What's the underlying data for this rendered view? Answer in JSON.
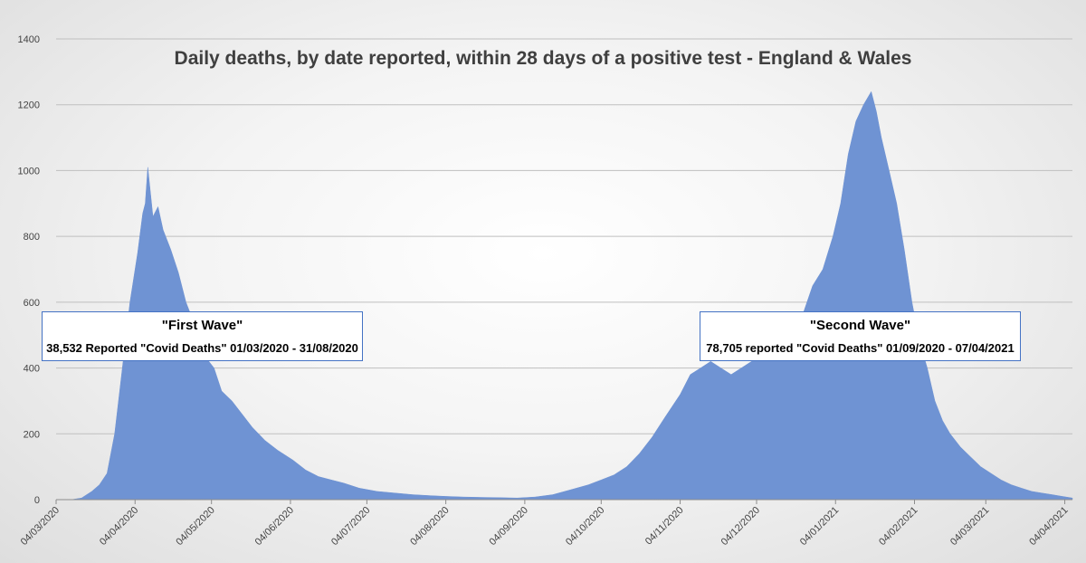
{
  "chart_data": {
    "type": "area",
    "title": "Daily deaths, by date reported, within 28 days of a positive test - England & Wales",
    "xlabel": "",
    "ylabel": "",
    "ylim": [
      0,
      1400
    ],
    "yticks": [
      0,
      200,
      400,
      600,
      800,
      1000,
      1200,
      1400
    ],
    "x_range": [
      "04/03/2020",
      "07/04/2021"
    ],
    "xtick_labels": [
      "04/03/2020",
      "04/04/2020",
      "04/05/2020",
      "04/06/2020",
      "04/07/2020",
      "04/08/2020",
      "04/09/2020",
      "04/10/2020",
      "04/11/2020",
      "04/12/2020",
      "04/01/2021",
      "04/02/2021",
      "04/03/2021",
      "04/04/2021"
    ],
    "grid": true,
    "legend": "none",
    "fill_color": "#6f93d3",
    "series": [
      {
        "x": [
          "04/03/2020",
          "10/03/2020",
          "14/03/2020",
          "18/03/2020",
          "21/03/2020",
          "24/03/2020",
          "27/03/2020",
          "30/03/2020",
          "02/04/2020",
          "05/04/2020",
          "07/04/2020",
          "08/04/2020",
          "09/04/2020",
          "11/04/2020",
          "13/04/2020",
          "15/04/2020",
          "18/04/2020",
          "21/04/2020",
          "24/04/2020",
          "27/04/2020",
          "30/04/2020",
          "02/05/2020",
          "05/05/2020",
          "08/05/2020",
          "12/05/2020",
          "16/05/2020",
          "20/05/2020",
          "25/05/2020",
          "30/05/2020",
          "05/06/2020",
          "10/06/2020",
          "15/06/2020",
          "20/06/2020",
          "25/06/2020",
          "01/07/2020",
          "08/07/2020",
          "15/07/2020",
          "22/07/2020",
          "29/07/2020",
          "04/08/2020",
          "11/08/2020",
          "18/08/2020",
          "25/08/2020",
          "01/09/2020",
          "08/09/2020",
          "15/09/2020",
          "22/09/2020",
          "29/09/2020",
          "04/10/2020",
          "09/10/2020",
          "14/10/2020",
          "19/10/2020",
          "24/10/2020",
          "29/10/2020",
          "04/11/2020",
          "08/11/2020",
          "12/11/2020",
          "16/11/2020",
          "20/11/2020",
          "24/11/2020",
          "28/11/2020",
          "02/12/2020",
          "06/12/2020",
          "10/12/2020",
          "14/12/2020",
          "18/12/2020",
          "22/12/2020",
          "26/12/2020",
          "30/12/2020",
          "03/01/2021",
          "06/01/2021",
          "09/01/2021",
          "12/01/2021",
          "15/01/2021",
          "18/01/2021",
          "20/01/2021",
          "22/01/2021",
          "25/01/2021",
          "28/01/2021",
          "31/01/2021",
          "03/02/2021",
          "06/02/2021",
          "09/02/2021",
          "12/02/2021",
          "15/02/2021",
          "18/02/2021",
          "22/02/2021",
          "26/02/2021",
          "02/03/2021",
          "06/03/2021",
          "10/03/2021",
          "14/03/2021",
          "18/03/2021",
          "22/03/2021",
          "26/03/2021",
          "30/03/2021",
          "03/04/2021",
          "07/04/2021"
        ],
        "values": [
          0,
          0,
          5,
          25,
          45,
          80,
          200,
          400,
          600,
          750,
          870,
          900,
          1010,
          860,
          890,
          820,
          760,
          690,
          600,
          540,
          470,
          430,
          400,
          330,
          300,
          260,
          220,
          180,
          150,
          120,
          90,
          70,
          60,
          50,
          35,
          25,
          20,
          15,
          12,
          10,
          8,
          7,
          6,
          5,
          8,
          15,
          30,
          45,
          60,
          75,
          100,
          140,
          190,
          250,
          320,
          380,
          400,
          420,
          400,
          380,
          400,
          420,
          430,
          450,
          460,
          500,
          560,
          650,
          700,
          800,
          900,
          1050,
          1150,
          1200,
          1240,
          1180,
          1100,
          1000,
          900,
          760,
          600,
          480,
          400,
          300,
          240,
          200,
          160,
          130,
          100,
          80,
          60,
          45,
          35,
          25,
          20,
          15,
          10,
          5
        ]
      }
    ],
    "annotations": [
      {
        "title": "\"First Wave\"",
        "text": "38,532 Reported \"Covid Deaths\" 01/03/2020 - 31/08/2020"
      },
      {
        "title": "\"Second Wave\"",
        "text": "78,705 reported \"Covid Deaths\" 01/09/2020 - 07/04/2021"
      }
    ]
  }
}
